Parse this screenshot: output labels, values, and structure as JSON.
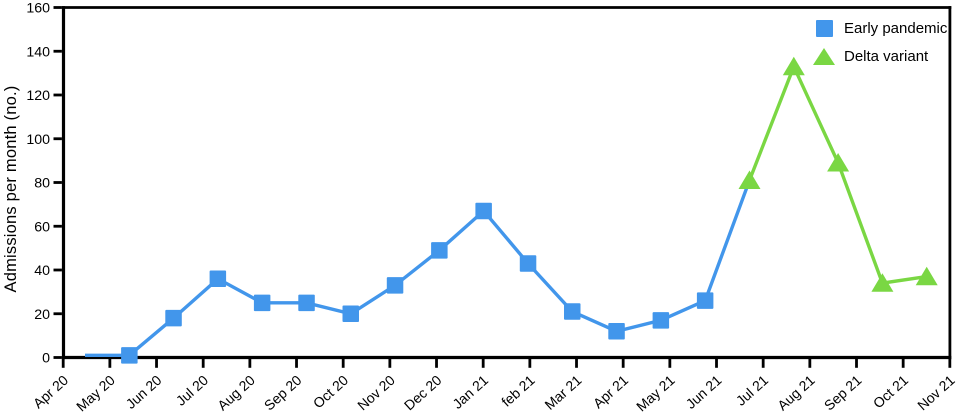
{
  "chart_data": {
    "type": "line",
    "title": "",
    "xlabel": "",
    "ylabel": "Admissions per month (no.)",
    "ylim": [
      0,
      160
    ],
    "ytick_step": 20,
    "grid": false,
    "legend_position": "top-right-inside",
    "frame": "full-box",
    "axis_color": "#000000",
    "categories": [
      "Apr 20",
      "May 20",
      "Jun 20",
      "Jul 20",
      "Aug 20",
      "Sep 20",
      "Oct 20",
      "Nov 20",
      "Dec 20",
      "Jan 21",
      "feb 21",
      "Mar 21",
      "Apr 21",
      "May 21",
      "Jun 21",
      "Jul 21",
      "Aug 21",
      "Sep 21",
      "Oct 21",
      "Nov 21"
    ],
    "series": [
      {
        "name": "Early pandemic",
        "marker": "square",
        "color": "#4296EB",
        "values": [
          1,
          1,
          18,
          36,
          25,
          25,
          20,
          33,
          49,
          67,
          43,
          21,
          12,
          17,
          26,
          81,
          null,
          null,
          null,
          null
        ],
        "marker_indices": [
          1,
          14
        ]
      },
      {
        "name": "Delta variant",
        "marker": "triangle",
        "color": "#7AD743",
        "values": [
          null,
          null,
          null,
          null,
          null,
          null,
          null,
          null,
          null,
          null,
          null,
          null,
          null,
          null,
          null,
          81,
          133,
          89,
          34,
          37
        ],
        "marker_indices": [
          15,
          19
        ]
      }
    ]
  }
}
